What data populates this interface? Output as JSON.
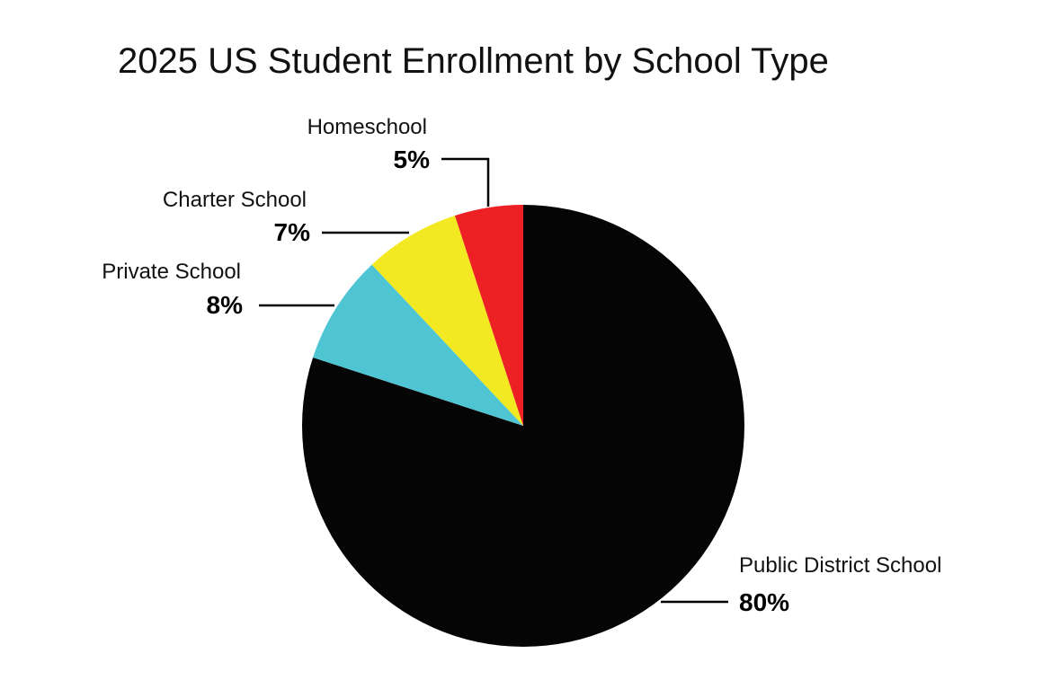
{
  "chart_data": {
    "type": "pie",
    "title": "2025 US Student Enrollment by School Type",
    "start_angle_deg": 0,
    "direction": "clockwise",
    "slices": [
      {
        "label": "Public District School",
        "value": 80,
        "value_label": "80%",
        "color": "#050505"
      },
      {
        "label": "Private School",
        "value": 8,
        "value_label": "8%",
        "color": "#4fc5d4"
      },
      {
        "label": "Charter School",
        "value": 7,
        "value_label": "7%",
        "color": "#f2e922"
      },
      {
        "label": "Homeschool",
        "value": 5,
        "value_label": "5%",
        "color": "#ed2024"
      }
    ]
  }
}
